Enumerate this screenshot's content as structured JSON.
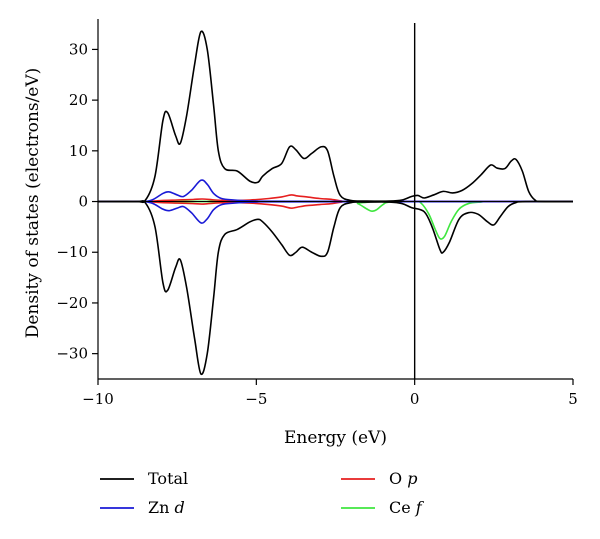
{
  "chart_data": {
    "type": "line",
    "xlabel": "Energy (eV)",
    "ylabel": "Density of states (electrons/eV)",
    "xlim": [
      -10,
      5
    ],
    "ylim": [
      -35,
      36
    ],
    "xticks": [
      -10,
      -5,
      0,
      5
    ],
    "xtick_labels": [
      "−10",
      "−5",
      "0",
      "5"
    ],
    "yticks": [
      -30,
      -20,
      -10,
      0,
      10,
      20,
      30
    ],
    "ytick_labels": [
      "−30",
      "−20",
      "−10",
      "0",
      "10",
      "20",
      "30"
    ],
    "grid": false,
    "fermi_level_line_x": 0,
    "legend_position": "bottom",
    "series": [
      {
        "name": "Total",
        "name_parts": [
          "Total",
          ""
        ],
        "color": "#000000",
        "points_up": [
          [
            -10,
            0
          ],
          [
            -8.8,
            0
          ],
          [
            -8.5,
            0.3
          ],
          [
            -8.2,
            5
          ],
          [
            -7.95,
            16
          ],
          [
            -7.8,
            17.5
          ],
          [
            -7.55,
            13
          ],
          [
            -7.4,
            11.5
          ],
          [
            -7.2,
            17
          ],
          [
            -6.95,
            27
          ],
          [
            -6.75,
            33.5
          ],
          [
            -6.55,
            30
          ],
          [
            -6.35,
            19
          ],
          [
            -6.2,
            10
          ],
          [
            -6.0,
            6.5
          ],
          [
            -5.6,
            6
          ],
          [
            -5.2,
            4
          ],
          [
            -4.95,
            3.8
          ],
          [
            -4.8,
            5
          ],
          [
            -4.5,
            6.5
          ],
          [
            -4.2,
            7.5
          ],
          [
            -3.95,
            10.8
          ],
          [
            -3.75,
            10.2
          ],
          [
            -3.5,
            8.5
          ],
          [
            -3.25,
            9.5
          ],
          [
            -2.95,
            10.8
          ],
          [
            -2.75,
            10
          ],
          [
            -2.55,
            5
          ],
          [
            -2.35,
            1.2
          ],
          [
            -2.0,
            0.2
          ],
          [
            -1.5,
            0.1
          ],
          [
            -0.8,
            0.1
          ],
          [
            -0.4,
            0.3
          ],
          [
            -0.1,
            1
          ],
          [
            0.1,
            1.2
          ],
          [
            0.3,
            0.7
          ],
          [
            0.6,
            1.3
          ],
          [
            0.9,
            2
          ],
          [
            1.2,
            1.7
          ],
          [
            1.5,
            2.2
          ],
          [
            1.8,
            3.5
          ],
          [
            2.1,
            5.3
          ],
          [
            2.4,
            7.2
          ],
          [
            2.6,
            6.6
          ],
          [
            2.85,
            6.5
          ],
          [
            3.05,
            8
          ],
          [
            3.2,
            8.3
          ],
          [
            3.4,
            6
          ],
          [
            3.6,
            2
          ],
          [
            3.8,
            0.3
          ],
          [
            4.0,
            0
          ],
          [
            5,
            0
          ]
        ],
        "points_down": [
          [
            -10,
            0
          ],
          [
            -8.8,
            0
          ],
          [
            -8.5,
            -0.3
          ],
          [
            -8.2,
            -5
          ],
          [
            -7.95,
            -16
          ],
          [
            -7.8,
            -17.5
          ],
          [
            -7.55,
            -13
          ],
          [
            -7.4,
            -11.5
          ],
          [
            -7.2,
            -17
          ],
          [
            -6.95,
            -27
          ],
          [
            -6.75,
            -34
          ],
          [
            -6.55,
            -30
          ],
          [
            -6.35,
            -19
          ],
          [
            -6.2,
            -10
          ],
          [
            -6.0,
            -6.5
          ],
          [
            -5.6,
            -5.5
          ],
          [
            -5.2,
            -4
          ],
          [
            -4.95,
            -3.5
          ],
          [
            -4.8,
            -4
          ],
          [
            -4.5,
            -6
          ],
          [
            -4.2,
            -8.5
          ],
          [
            -3.95,
            -10.6
          ],
          [
            -3.75,
            -10
          ],
          [
            -3.55,
            -9
          ],
          [
            -3.25,
            -10
          ],
          [
            -2.95,
            -10.8
          ],
          [
            -2.75,
            -10
          ],
          [
            -2.55,
            -5
          ],
          [
            -2.35,
            -1.2
          ],
          [
            -2.0,
            -0.2
          ],
          [
            -1.5,
            -0.1
          ],
          [
            -0.8,
            -0.1
          ],
          [
            -0.4,
            -0.4
          ],
          [
            -0.1,
            -1.2
          ],
          [
            0.3,
            -2
          ],
          [
            0.55,
            -5
          ],
          [
            0.8,
            -9.5
          ],
          [
            0.9,
            -10
          ],
          [
            1.1,
            -8
          ],
          [
            1.4,
            -3.5
          ],
          [
            1.7,
            -2.2
          ],
          [
            2.0,
            -2.5
          ],
          [
            2.3,
            -4
          ],
          [
            2.5,
            -4.6
          ],
          [
            2.7,
            -3
          ],
          [
            2.95,
            -1
          ],
          [
            3.2,
            -0.2
          ],
          [
            3.5,
            0
          ],
          [
            5,
            0
          ]
        ]
      },
      {
        "name": "Zn d",
        "name_parts": [
          "Zn ",
          "d"
        ],
        "color": "#1a1ad6",
        "points_up": [
          [
            -10,
            0
          ],
          [
            -8.7,
            0
          ],
          [
            -8.3,
            0.3
          ],
          [
            -7.95,
            1.6
          ],
          [
            -7.75,
            1.9
          ],
          [
            -7.5,
            1.3
          ],
          [
            -7.3,
            1
          ],
          [
            -7.05,
            2.2
          ],
          [
            -6.75,
            4.2
          ],
          [
            -6.55,
            3.4
          ],
          [
            -6.35,
            1.6
          ],
          [
            -6.1,
            0.6
          ],
          [
            -5.7,
            0.3
          ],
          [
            -5.0,
            0.1
          ],
          [
            -4.0,
            0.05
          ],
          [
            5,
            0
          ]
        ],
        "points_down": [
          [
            -10,
            0
          ],
          [
            -8.7,
            0
          ],
          [
            -8.3,
            -0.3
          ],
          [
            -7.95,
            -1.5
          ],
          [
            -7.75,
            -1.8
          ],
          [
            -7.5,
            -1.3
          ],
          [
            -7.3,
            -1
          ],
          [
            -7.05,
            -2.2
          ],
          [
            -6.75,
            -4.2
          ],
          [
            -6.55,
            -3.4
          ],
          [
            -6.35,
            -1.6
          ],
          [
            -6.1,
            -0.6
          ],
          [
            -5.7,
            -0.3
          ],
          [
            -5.0,
            -0.1
          ],
          [
            -4.0,
            -0.05
          ],
          [
            5,
            0
          ]
        ]
      },
      {
        "name": "O p",
        "name_parts": [
          "O ",
          "p"
        ],
        "color": "#e61f1f",
        "points_up": [
          [
            -10,
            0
          ],
          [
            -8.6,
            0
          ],
          [
            -8.0,
            0.2
          ],
          [
            -7.5,
            0.3
          ],
          [
            -7.0,
            0.4
          ],
          [
            -6.7,
            0.5
          ],
          [
            -6.3,
            0.3
          ],
          [
            -5.8,
            0.2
          ],
          [
            -5.2,
            0.3
          ],
          [
            -4.6,
            0.6
          ],
          [
            -4.2,
            0.9
          ],
          [
            -3.9,
            1.3
          ],
          [
            -3.7,
            1.1
          ],
          [
            -3.4,
            0.9
          ],
          [
            -3.0,
            0.6
          ],
          [
            -2.6,
            0.4
          ],
          [
            -2.3,
            0.1
          ],
          [
            -2.0,
            0
          ],
          [
            5,
            0
          ]
        ],
        "points_down": [
          [
            -10,
            0
          ],
          [
            -8.6,
            0
          ],
          [
            -8.0,
            -0.2
          ],
          [
            -7.5,
            -0.3
          ],
          [
            -7.0,
            -0.4
          ],
          [
            -6.7,
            -0.5
          ],
          [
            -6.3,
            -0.3
          ],
          [
            -5.8,
            -0.2
          ],
          [
            -5.2,
            -0.3
          ],
          [
            -4.6,
            -0.6
          ],
          [
            -4.2,
            -0.9
          ],
          [
            -3.9,
            -1.3
          ],
          [
            -3.7,
            -1.1
          ],
          [
            -3.4,
            -0.8
          ],
          [
            -3.0,
            -0.6
          ],
          [
            -2.6,
            -0.4
          ],
          [
            -2.3,
            -0.1
          ],
          [
            -2.0,
            0
          ],
          [
            5,
            0
          ]
        ]
      },
      {
        "name": "Ce f",
        "name_parts": [
          "Ce ",
          "f"
        ],
        "color": "#3fe63f",
        "points_up": [
          [
            -10,
            0
          ],
          [
            5,
            0
          ]
        ],
        "points_down": [
          [
            -10,
            0
          ],
          [
            -2.1,
            0
          ],
          [
            -1.8,
            -0.4
          ],
          [
            -1.5,
            -1.5
          ],
          [
            -1.35,
            -1.9
          ],
          [
            -1.2,
            -1.6
          ],
          [
            -1.0,
            -0.6
          ],
          [
            -0.8,
            -0.1
          ],
          [
            0.0,
            0
          ],
          [
            0.2,
            -0.3
          ],
          [
            0.45,
            -2.5
          ],
          [
            0.65,
            -5.5
          ],
          [
            0.8,
            -7.3
          ],
          [
            0.95,
            -6.8
          ],
          [
            1.15,
            -4
          ],
          [
            1.4,
            -1.5
          ],
          [
            1.7,
            -0.4
          ],
          [
            2.1,
            -0.1
          ],
          [
            2.5,
            0
          ],
          [
            5,
            0
          ]
        ]
      }
    ]
  }
}
